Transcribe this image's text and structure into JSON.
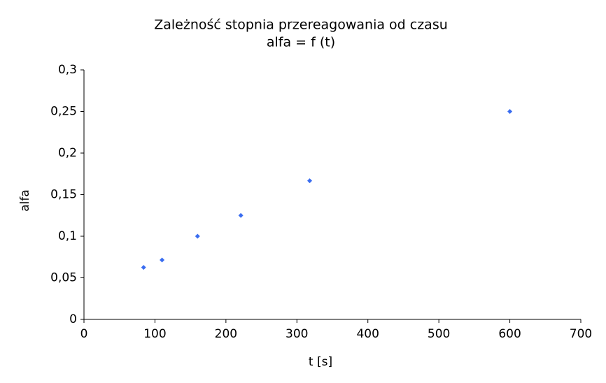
{
  "chart_data": {
    "type": "scatter",
    "title": "Zależność stopnia przereagowania od  czasu",
    "subtitle": "alfa = f (t)",
    "x_label": "t [s]",
    "y_label": "alfa",
    "series": [
      {
        "name": "alfa",
        "color": "#3a6df0",
        "x": [
          84,
          110,
          160,
          221,
          318,
          600
        ],
        "values": [
          0.0625,
          0.0714,
          0.1,
          0.125,
          0.1667,
          0.25
        ]
      }
    ],
    "xlim": [
      0,
      700
    ],
    "xticks": [
      0,
      100,
      200,
      300,
      400,
      500,
      600,
      700
    ],
    "ylim": [
      0,
      0.3
    ],
    "yticks": [
      0,
      {
        "value": 0.05,
        "label": "0,05"
      },
      {
        "value": 0.1,
        "label": "0,1"
      },
      {
        "value": 0.15,
        "label": "0,15"
      },
      {
        "value": 0.2,
        "label": "0,2"
      },
      {
        "value": 0.25,
        "label": "0,25"
      },
      {
        "value": 0.3,
        "label": "0,3"
      }
    ],
    "grid": false
  }
}
